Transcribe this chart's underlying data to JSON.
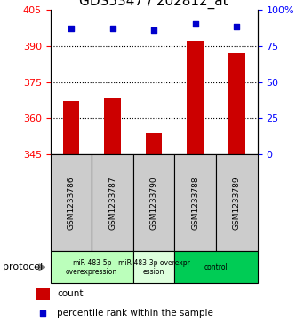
{
  "title": "GDS5347 / 202812_at",
  "samples": [
    "GSM1233786",
    "GSM1233787",
    "GSM1233790",
    "GSM1233788",
    "GSM1233789"
  ],
  "counts": [
    367.0,
    368.5,
    354.0,
    392.0,
    387.0
  ],
  "percentiles": [
    87,
    87,
    86,
    90,
    88
  ],
  "ylim_left": [
    345,
    405
  ],
  "ylim_right": [
    0,
    100
  ],
  "yticks_left": [
    345,
    360,
    375,
    390,
    405
  ],
  "yticks_right": [
    0,
    25,
    50,
    75,
    100
  ],
  "bar_color": "#cc0000",
  "dot_color": "#0000cc",
  "protocol_groups": [
    {
      "label": "miR-483-5p\noverexpression",
      "samples": [
        0,
        1
      ],
      "color": "#bbffbb"
    },
    {
      "label": "miR-483-3p overexpr\nession",
      "samples": [
        2
      ],
      "color": "#ddffdd"
    },
    {
      "label": "control",
      "samples": [
        3,
        4
      ],
      "color": "#00cc55"
    }
  ],
  "legend_count_label": "count",
  "legend_percentile_label": "percentile rank within the sample",
  "protocol_label": "protocol",
  "sample_box_color": "#cccccc",
  "title_fontsize": 11,
  "tick_fontsize": 8,
  "label_fontsize": 8
}
